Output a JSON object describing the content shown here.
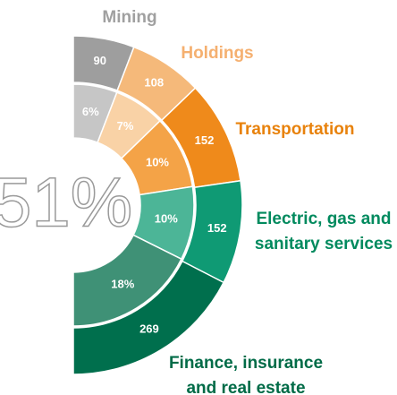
{
  "chart_data": {
    "type": "half-donut",
    "center_label": {
      "value": 51,
      "label": "51%"
    },
    "categories": [
      [
        "Mining"
      ],
      [
        "Holdings"
      ],
      [
        "Transportation"
      ],
      [
        "Electric, gas and",
        "sanitary services"
      ],
      [
        "Finance, insurance",
        "and real estate"
      ]
    ],
    "values": [
      90,
      108,
      152,
      152,
      269
    ],
    "inner_values": [
      6,
      7,
      10,
      10,
      18
    ],
    "inner_value_labels": [
      "6%",
      "7%",
      "10%",
      "10%",
      "18%"
    ],
    "colors": [
      "#9e9e9e",
      "#f5b97a",
      "#ef8a1b",
      "#0f9a74",
      "#006f4d"
    ],
    "inner_colors": [
      "#c6c6c6",
      "#f9d2a6",
      "#f4a347",
      "#4cb597",
      "#3f9176"
    ],
    "label_colors": [
      "#a0a0a0",
      "#f5b070",
      "#e8820c",
      "#008a5e",
      "#006b47"
    ]
  }
}
